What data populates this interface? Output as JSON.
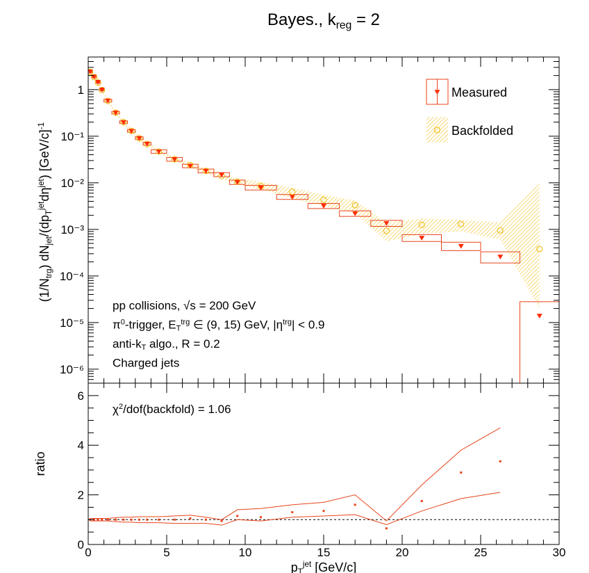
{
  "chart_data": [
    {
      "type": "spectrum",
      "title": [
        {
          "t": "Bayes., k"
        },
        {
          "t": "reg",
          "s": "sub"
        },
        {
          "t": " = 2"
        }
      ],
      "ylabel": [
        {
          "t": "(1/N"
        },
        {
          "t": "trg",
          "s": "sub"
        },
        {
          "t": ") dN"
        },
        {
          "t": "jet",
          "s": "sub"
        },
        {
          "t": "/(dp"
        },
        {
          "t": "T",
          "s": "sub"
        },
        {
          "t": "jet",
          "s": "sup"
        },
        {
          "t": "dη"
        },
        {
          "t": "jet",
          "s": "sup"
        },
        {
          "t": ") [GeV/c]"
        },
        {
          "t": "-1",
          "s": "sup"
        }
      ],
      "xlim": [
        0,
        30
      ],
      "xticks": [
        0,
        5,
        10,
        15,
        20,
        25,
        30
      ],
      "ylim": [
        5e-07,
        5
      ],
      "log_y": true,
      "yticks": [
        1,
        {
          "value": 0.1,
          "label": "10⁻¹"
        },
        {
          "value": 0.01,
          "label": "10⁻²"
        },
        {
          "value": 0.001,
          "label": "10⁻³"
        },
        {
          "value": 0.0001,
          "label": "10⁻⁴"
        },
        {
          "value": 1e-05,
          "label": "10⁻⁵"
        },
        {
          "value": 1e-06,
          "label": "10⁻⁶"
        }
      ],
      "bin_edges": [
        0,
        0.25,
        0.5,
        0.75,
        1,
        1.5,
        2,
        2.5,
        3,
        3.5,
        4,
        5,
        6,
        7,
        8,
        9,
        10,
        12,
        14,
        16,
        18,
        20,
        22.5,
        25,
        27.5,
        30
      ],
      "x": [
        0.125,
        0.375,
        0.625,
        0.875,
        1.25,
        1.75,
        2.25,
        2.75,
        3.25,
        3.75,
        4.5,
        5.5,
        6.5,
        7.5,
        8.5,
        9.5,
        11,
        13,
        15,
        17,
        19,
        21.25,
        23.75,
        26.25,
        28.75
      ],
      "series": [
        {
          "name": "Measured",
          "color": "#e8431a",
          "values": [
            2.45,
            1.9,
            1.46,
            1.0,
            0.58,
            0.32,
            0.2,
            0.13,
            0.091,
            0.069,
            0.047,
            0.032,
            0.023,
            0.018,
            0.015,
            0.0103,
            0.0079,
            0.005,
            0.0032,
            0.0022,
            0.00136,
            0.00066,
            0.00044,
            0.00026,
            1.4e-05
          ],
          "errors": [
            0.15,
            0.12,
            0.09,
            0.06,
            0.04,
            0.02,
            0.013,
            0.009,
            0.006,
            0.005,
            0.004,
            0.003,
            0.002,
            0.0017,
            0.0015,
            0.0011,
            0.0009,
            0.0006,
            0.0004,
            0.0003,
            0.0002,
            0.00011,
            9e-05,
            7e-05,
            1.4e-05
          ]
        },
        {
          "name": "Backfolded",
          "color": "#f0c020",
          "values": [
            2.4,
            1.85,
            1.42,
            0.98,
            0.57,
            0.32,
            0.2,
            0.13,
            0.09,
            0.068,
            0.047,
            0.032,
            0.024,
            0.018,
            0.014,
            0.0105,
            0.0085,
            0.0064,
            0.0043,
            0.0033,
            0.00093,
            0.00125,
            0.0013,
            0.00095,
            0.00038
          ],
          "lower": [
            2.2,
            1.7,
            1.3,
            0.9,
            0.52,
            0.29,
            0.18,
            0.118,
            0.082,
            0.062,
            0.043,
            0.029,
            0.021,
            0.016,
            0.012,
            0.0092,
            0.0072,
            0.0045,
            0.0032,
            0.0022,
            0.00055,
            0.0008,
            0.0009,
            0.0006,
            2e-05
          ],
          "upper": [
            2.6,
            2.0,
            1.55,
            1.06,
            0.62,
            0.35,
            0.22,
            0.142,
            0.098,
            0.074,
            0.051,
            0.035,
            0.027,
            0.02,
            0.016,
            0.0125,
            0.0105,
            0.0078,
            0.0055,
            0.0042,
            0.0014,
            0.0017,
            0.0016,
            0.0014,
            0.01
          ]
        }
      ],
      "legend": "top-right",
      "annotations": [
        {
          "segments": [
            {
              "t": "pp collisions, √s = 200 GeV"
            }
          ]
        },
        {
          "segments": [
            {
              "t": "π"
            },
            {
              "t": "0",
              "s": "sup"
            },
            {
              "t": "-trigger, E"
            },
            {
              "t": "T",
              "s": "sub"
            },
            {
              "t": "trg",
              "s": "sup"
            },
            {
              "t": " ∈ (9, 15) GeV, |η"
            },
            {
              "t": "trg",
              "s": "sup"
            },
            {
              "t": "| < 0.9"
            }
          ]
        },
        {
          "segments": [
            {
              "t": "anti-k"
            },
            {
              "t": "T",
              "s": "sub"
            },
            {
              "t": " algo., R = 0.2"
            }
          ]
        },
        {
          "segments": [
            {
              "t": "Charged jets"
            }
          ],
          "color": "#ff0000"
        }
      ]
    },
    {
      "type": "ratio",
      "xlabel": [
        {
          "t": "p"
        },
        {
          "t": "T",
          "s": "sub"
        },
        {
          "t": "jet",
          "s": "sup"
        },
        {
          "t": " [GeV/c]"
        }
      ],
      "ylabel": "ratio",
      "xlim": [
        0,
        30
      ],
      "xticks": [
        0,
        5,
        10,
        15,
        20,
        25,
        30
      ],
      "ylim": [
        0,
        6.5
      ],
      "yticks": [
        0,
        2,
        4,
        6
      ],
      "reference": 1,
      "color": "#e8431a",
      "x": [
        0.125,
        0.375,
        0.625,
        0.875,
        1.25,
        1.75,
        2.25,
        2.75,
        3.25,
        3.75,
        4.5,
        5.5,
        6.5,
        7.5,
        8.5,
        9.5,
        11,
        13,
        15,
        17,
        19,
        21.25,
        23.75,
        26.25,
        28.75
      ],
      "values": [
        1.0,
        1.0,
        1.0,
        1.0,
        1.0,
        1.0,
        1.0,
        1.0,
        1.0,
        1.0,
        1.0,
        1.0,
        1.05,
        1.0,
        0.95,
        1.15,
        1.1,
        1.3,
        1.35,
        1.6,
        0.65,
        1.75,
        2.9,
        3.35,
        null
      ],
      "upper": [
        1.05,
        1.05,
        1.05,
        1.05,
        1.05,
        1.08,
        1.1,
        1.1,
        1.12,
        1.12,
        1.12,
        1.15,
        1.18,
        1.1,
        1.0,
        1.4,
        1.45,
        1.6,
        1.7,
        2.0,
        0.95,
        2.4,
        3.8,
        4.7,
        null
      ],
      "lower": [
        0.95,
        0.95,
        0.95,
        0.95,
        0.95,
        0.92,
        0.9,
        0.9,
        0.88,
        0.88,
        0.88,
        0.85,
        0.85,
        0.85,
        0.78,
        1.0,
        0.95,
        1.1,
        1.15,
        1.2,
        0.8,
        1.35,
        1.85,
        2.1,
        null
      ],
      "annotations": [
        {
          "segments": [
            {
              "t": "χ"
            },
            {
              "t": "2",
              "s": "sup"
            },
            {
              "t": "/dof(backfold) = 1.06"
            }
          ]
        }
      ]
    }
  ]
}
